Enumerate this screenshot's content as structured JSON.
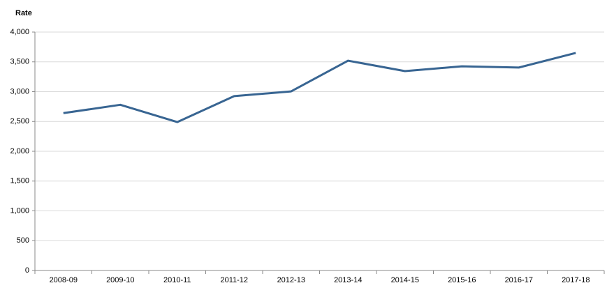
{
  "chart_data": {
    "type": "line",
    "y_label": "Rate",
    "categories": [
      "2008-09",
      "2009-10",
      "2010-11",
      "2011-12",
      "2012-13",
      "2013-14",
      "2014-15",
      "2015-16",
      "2016-17",
      "2017-18"
    ],
    "series": [
      {
        "name": "Rate",
        "color": "#386592",
        "values": [
          2640,
          2780,
          2490,
          2925,
          3005,
          3520,
          3345,
          3425,
          3405,
          3650
        ]
      }
    ],
    "ylim": [
      0,
      4000
    ],
    "yticks": [
      0,
      500,
      {
        "value": 1000,
        "label": "1,000"
      },
      {
        "value": 1500,
        "label": "1,500"
      },
      {
        "value": 2000,
        "label": "2,000"
      },
      {
        "value": 2500,
        "label": "2,500"
      },
      {
        "value": 3000,
        "label": "3,000"
      },
      {
        "value": 3500,
        "label": "3,500"
      },
      {
        "value": 4000,
        "label": "4,000"
      }
    ],
    "grid": true
  }
}
